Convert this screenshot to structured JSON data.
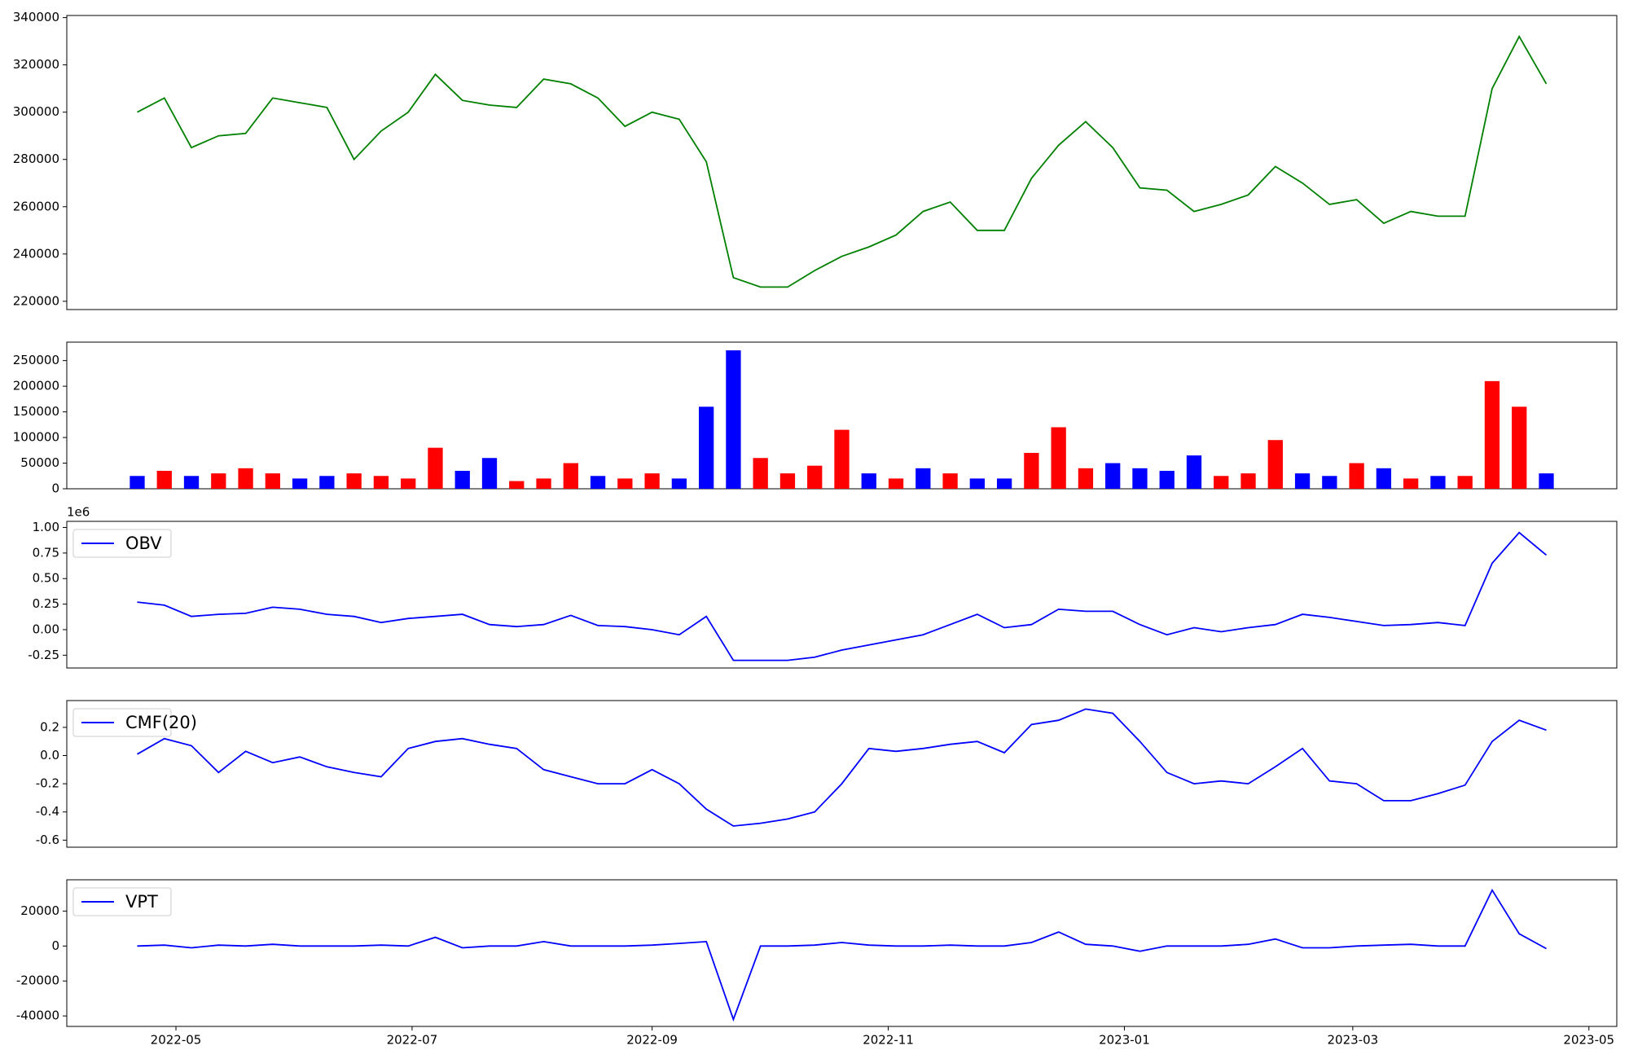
{
  "chart_data": [
    {
      "type": "line",
      "color": "#008000",
      "x": [
        "2022-04-21",
        "2022-04-28",
        "2022-05-05",
        "2022-05-12",
        "2022-05-19",
        "2022-05-26",
        "2022-06-02",
        "2022-06-09",
        "2022-06-16",
        "2022-06-23",
        "2022-06-30",
        "2022-07-07",
        "2022-07-14",
        "2022-07-21",
        "2022-07-28",
        "2022-08-04",
        "2022-08-11",
        "2022-08-18",
        "2022-08-25",
        "2022-09-01",
        "2022-09-08",
        "2022-09-15",
        "2022-09-22",
        "2022-09-29",
        "2022-10-06",
        "2022-10-13",
        "2022-10-20",
        "2022-10-27",
        "2022-11-03",
        "2022-11-10",
        "2022-11-17",
        "2022-11-24",
        "2022-12-01",
        "2022-12-08",
        "2022-12-15",
        "2022-12-22",
        "2022-12-29",
        "2023-01-05",
        "2023-01-12",
        "2023-01-19",
        "2023-01-26",
        "2023-02-02",
        "2023-02-09",
        "2023-02-16",
        "2023-02-23",
        "2023-03-02",
        "2023-03-09",
        "2023-03-16",
        "2023-03-23",
        "2023-03-30",
        "2023-04-06",
        "2023-04-13",
        "2023-04-20"
      ],
      "values": [
        300000,
        306000,
        285000,
        290000,
        291000,
        306000,
        304000,
        302000,
        280000,
        292000,
        300000,
        316000,
        305000,
        303000,
        302000,
        314000,
        312000,
        306000,
        294000,
        300000,
        297000,
        279000,
        230000,
        226000,
        226000,
        233000,
        239000,
        243000,
        248000,
        258000,
        262000,
        250000,
        250000,
        272000,
        286000,
        296000,
        285000,
        268000,
        267000,
        258000,
        261000,
        265000,
        277000,
        270000,
        261000,
        263000,
        253000,
        258000,
        256000,
        256000,
        310000,
        332000,
        312000
      ],
      "ylim": [
        216500,
        340900
      ],
      "yticks": [
        220000,
        240000,
        260000,
        280000,
        300000,
        320000,
        340000
      ]
    },
    {
      "type": "bar",
      "x": [
        "2022-04-21",
        "2022-04-28",
        "2022-05-05",
        "2022-05-12",
        "2022-05-19",
        "2022-05-26",
        "2022-06-02",
        "2022-06-09",
        "2022-06-16",
        "2022-06-23",
        "2022-06-30",
        "2022-07-07",
        "2022-07-14",
        "2022-07-21",
        "2022-07-28",
        "2022-08-04",
        "2022-08-11",
        "2022-08-18",
        "2022-08-25",
        "2022-09-01",
        "2022-09-08",
        "2022-09-15",
        "2022-09-22",
        "2022-09-29",
        "2022-10-06",
        "2022-10-13",
        "2022-10-20",
        "2022-10-27",
        "2022-11-03",
        "2022-11-10",
        "2022-11-17",
        "2022-11-24",
        "2022-12-01",
        "2022-12-08",
        "2022-12-15",
        "2022-12-22",
        "2022-12-29",
        "2023-01-05",
        "2023-01-12",
        "2023-01-19",
        "2023-01-26",
        "2023-02-02",
        "2023-02-09",
        "2023-02-16",
        "2023-02-23",
        "2023-03-02",
        "2023-03-09",
        "2023-03-16",
        "2023-03-23",
        "2023-03-30",
        "2023-04-06",
        "2023-04-13",
        "2023-04-20"
      ],
      "values": [
        25000,
        35000,
        25000,
        30000,
        40000,
        30000,
        20000,
        25000,
        30000,
        25000,
        20000,
        80000,
        35000,
        60000,
        15000,
        20000,
        50000,
        25000,
        20000,
        30000,
        20000,
        160000,
        270000,
        60000,
        30000,
        45000,
        115000,
        30000,
        20000,
        40000,
        30000,
        20000,
        20000,
        70000,
        120000,
        40000,
        50000,
        40000,
        35000,
        65000,
        25000,
        30000,
        95000,
        30000,
        25000,
        50000,
        40000,
        20000,
        25000,
        25000,
        210000,
        160000,
        30000
      ],
      "colors": [
        "#0000ff",
        "#ff0000",
        "#0000ff",
        "#ff0000",
        "#ff0000",
        "#ff0000",
        "#0000ff",
        "#0000ff",
        "#ff0000",
        "#ff0000",
        "#ff0000",
        "#ff0000",
        "#0000ff",
        "#0000ff",
        "#ff0000",
        "#ff0000",
        "#ff0000",
        "#0000ff",
        "#ff0000",
        "#ff0000",
        "#0000ff",
        "#0000ff",
        "#0000ff",
        "#ff0000",
        "#ff0000",
        "#ff0000",
        "#ff0000",
        "#0000ff",
        "#ff0000",
        "#0000ff",
        "#ff0000",
        "#0000ff",
        "#0000ff",
        "#ff0000",
        "#ff0000",
        "#ff0000",
        "#0000ff",
        "#0000ff",
        "#0000ff",
        "#0000ff",
        "#ff0000",
        "#ff0000",
        "#ff0000",
        "#0000ff",
        "#0000ff",
        "#ff0000",
        "#0000ff",
        "#ff0000",
        "#0000ff",
        "#ff0000",
        "#ff0000",
        "#ff0000",
        "#0000ff"
      ],
      "ylim": [
        0,
        286000
      ],
      "yticks": [
        0,
        50000,
        100000,
        150000,
        200000,
        250000
      ]
    },
    {
      "type": "line",
      "y_offset_label": "1e6",
      "x": [
        "2022-04-21",
        "2022-04-28",
        "2022-05-05",
        "2022-05-12",
        "2022-05-19",
        "2022-05-26",
        "2022-06-02",
        "2022-06-09",
        "2022-06-16",
        "2022-06-23",
        "2022-06-30",
        "2022-07-07",
        "2022-07-14",
        "2022-07-21",
        "2022-07-28",
        "2022-08-04",
        "2022-08-11",
        "2022-08-18",
        "2022-08-25",
        "2022-09-01",
        "2022-09-08",
        "2022-09-15",
        "2022-09-22",
        "2022-09-29",
        "2022-10-06",
        "2022-10-13",
        "2022-10-20",
        "2022-10-27",
        "2022-11-03",
        "2022-11-10",
        "2022-11-17",
        "2022-11-24",
        "2022-12-01",
        "2022-12-08",
        "2022-12-15",
        "2022-12-22",
        "2022-12-29",
        "2023-01-05",
        "2023-01-12",
        "2023-01-19",
        "2023-01-26",
        "2023-02-02",
        "2023-02-09",
        "2023-02-16",
        "2023-02-23",
        "2023-03-02",
        "2023-03-09",
        "2023-03-16",
        "2023-03-23",
        "2023-03-30",
        "2023-04-06",
        "2023-04-13",
        "2023-04-20"
      ],
      "series": [
        {
          "name": "OBV",
          "color": "#0000ff",
          "values": [
            0.27,
            0.24,
            0.13,
            0.15,
            0.16,
            0.22,
            0.2,
            0.15,
            0.13,
            0.07,
            0.11,
            0.13,
            0.15,
            0.05,
            0.03,
            0.05,
            0.14,
            0.04,
            0.03,
            0.0,
            -0.05,
            0.13,
            -0.3,
            -0.3,
            -0.3,
            -0.27,
            -0.2,
            -0.15,
            -0.1,
            -0.05,
            0.05,
            0.15,
            0.02,
            0.05,
            0.2,
            0.18,
            0.18,
            0.05,
            -0.05,
            0.02,
            -0.02,
            0.02,
            0.05,
            0.15,
            0.12,
            0.08,
            0.04,
            0.05,
            0.07,
            0.04,
            0.65,
            0.95,
            0.73
          ]
        }
      ],
      "ylim": [
        -0.375,
        1.06
      ],
      "yticks": [
        {
          "value": -0.25,
          "label": "-0.25"
        },
        {
          "value": 0,
          "label": "0.00"
        },
        0.25,
        {
          "value": 0.5,
          "label": "0.50"
        },
        0.75,
        {
          "value": 1,
          "label": "1.00"
        }
      ]
    },
    {
      "type": "line",
      "x": [
        "2022-04-21",
        "2022-04-28",
        "2022-05-05",
        "2022-05-12",
        "2022-05-19",
        "2022-05-26",
        "2022-06-02",
        "2022-06-09",
        "2022-06-16",
        "2022-06-23",
        "2022-06-30",
        "2022-07-07",
        "2022-07-14",
        "2022-07-21",
        "2022-07-28",
        "2022-08-04",
        "2022-08-11",
        "2022-08-18",
        "2022-08-25",
        "2022-09-01",
        "2022-09-08",
        "2022-09-15",
        "2022-09-22",
        "2022-09-29",
        "2022-10-06",
        "2022-10-13",
        "2022-10-20",
        "2022-10-27",
        "2022-11-03",
        "2022-11-10",
        "2022-11-17",
        "2022-11-24",
        "2022-12-01",
        "2022-12-08",
        "2022-12-15",
        "2022-12-22",
        "2022-12-29",
        "2023-01-05",
        "2023-01-12",
        "2023-01-19",
        "2023-01-26",
        "2023-02-02",
        "2023-02-09",
        "2023-02-16",
        "2023-02-23",
        "2023-03-02",
        "2023-03-09",
        "2023-03-16",
        "2023-03-23",
        "2023-03-30",
        "2023-04-06",
        "2023-04-13",
        "2023-04-20"
      ],
      "series": [
        {
          "name": "CMF(20)",
          "color": "#0000ff",
          "values": [
            0.01,
            0.12,
            0.07,
            -0.12,
            0.03,
            -0.05,
            -0.01,
            -0.08,
            -0.12,
            -0.15,
            0.05,
            0.1,
            0.12,
            0.08,
            0.05,
            -0.1,
            -0.15,
            -0.2,
            -0.2,
            -0.1,
            -0.2,
            -0.38,
            -0.5,
            -0.48,
            -0.45,
            -0.4,
            -0.2,
            0.05,
            0.03,
            0.05,
            0.08,
            0.1,
            0.02,
            0.22,
            0.25,
            0.33,
            0.3,
            0.1,
            -0.12,
            -0.2,
            -0.18,
            -0.2,
            -0.08,
            0.05,
            -0.18,
            -0.2,
            -0.32,
            -0.32,
            -0.27,
            -0.21,
            0.1,
            0.25,
            0.18
          ]
        }
      ],
      "ylim": [
        -0.65,
        0.39
      ],
      "yticks": [
        -0.6,
        -0.4,
        -0.2,
        {
          "value": 0,
          "label": "0.0"
        },
        0.2
      ]
    },
    {
      "type": "line",
      "x": [
        "2022-04-21",
        "2022-04-28",
        "2022-05-05",
        "2022-05-12",
        "2022-05-19",
        "2022-05-26",
        "2022-06-02",
        "2022-06-09",
        "2022-06-16",
        "2022-06-23",
        "2022-06-30",
        "2022-07-07",
        "2022-07-14",
        "2022-07-21",
        "2022-07-28",
        "2022-08-04",
        "2022-08-11",
        "2022-08-18",
        "2022-08-25",
        "2022-09-01",
        "2022-09-08",
        "2022-09-15",
        "2022-09-22",
        "2022-09-29",
        "2022-10-06",
        "2022-10-13",
        "2022-10-20",
        "2022-10-27",
        "2022-11-03",
        "2022-11-10",
        "2022-11-17",
        "2022-11-24",
        "2022-12-01",
        "2022-12-08",
        "2022-12-15",
        "2022-12-22",
        "2022-12-29",
        "2023-01-05",
        "2023-01-12",
        "2023-01-19",
        "2023-01-26",
        "2023-02-02",
        "2023-02-09",
        "2023-02-16",
        "2023-02-23",
        "2023-03-02",
        "2023-03-09",
        "2023-03-16",
        "2023-03-23",
        "2023-03-30",
        "2023-04-06",
        "2023-04-13",
        "2023-04-20"
      ],
      "series": [
        {
          "name": "VPT",
          "color": "#0000ff",
          "values": [
            0,
            500,
            -1000,
            500,
            0,
            1000,
            0,
            0,
            0,
            500,
            0,
            5000,
            -1000,
            0,
            0,
            2500,
            0,
            0,
            0,
            500,
            1500,
            2500,
            -42000,
            0,
            0,
            500,
            2000,
            500,
            0,
            0,
            500,
            0,
            0,
            2000,
            8000,
            1000,
            0,
            -3000,
            0,
            0,
            0,
            1000,
            4000,
            -1000,
            -1000,
            0,
            500,
            1000,
            0,
            0,
            32000,
            7000,
            -1500
          ]
        }
      ],
      "ylim": [
        -46000,
        37900
      ],
      "yticks": [
        -40000,
        -20000,
        0,
        20000
      ],
      "xticks": [
        "2022-05",
        "2022-07",
        "2022-09",
        "2022-11",
        "2023-01",
        "2023-03",
        "2023-05"
      ]
    }
  ]
}
